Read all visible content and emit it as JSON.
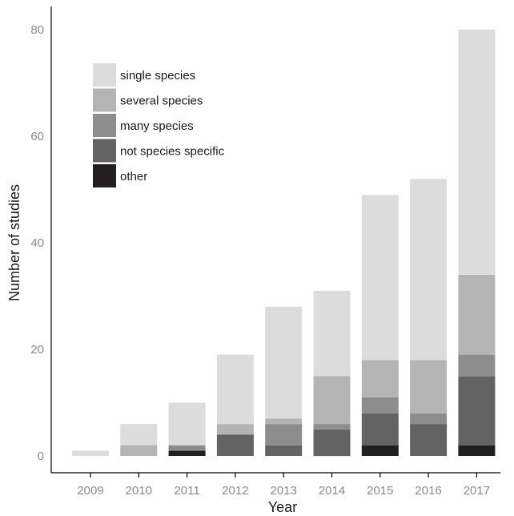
{
  "chart_data": {
    "type": "bar",
    "stacked": true,
    "title": "",
    "xlabel": "Year",
    "ylabel": "Number of studies",
    "categories": [
      "2009",
      "2010",
      "2011",
      "2012",
      "2013",
      "2014",
      "2015",
      "2016",
      "2017"
    ],
    "ylim": [
      0,
      80
    ],
    "yticks": [
      0,
      20,
      40,
      60,
      80
    ],
    "grid": false,
    "legend_position": "top-left",
    "series": [
      {
        "name": "other",
        "color": "#231f20",
        "values": [
          0,
          0,
          1,
          0,
          0,
          0,
          2,
          0,
          2
        ]
      },
      {
        "name": "not species specific",
        "color": "#636363",
        "values": [
          0,
          0,
          0,
          4,
          2,
          5,
          6,
          6,
          13
        ]
      },
      {
        "name": "many species",
        "color": "#8d8d8d",
        "values": [
          0,
          0,
          1,
          0,
          4,
          1,
          3,
          2,
          4
        ]
      },
      {
        "name": "several species",
        "color": "#b4b4b4",
        "values": [
          0,
          2,
          0,
          2,
          1,
          9,
          7,
          10,
          15
        ]
      },
      {
        "name": "single species",
        "color": "#dcdcdd",
        "values": [
          1,
          4,
          8,
          13,
          21,
          16,
          31,
          34,
          46
        ]
      }
    ],
    "legend_order": [
      "single species",
      "several species",
      "many species",
      "not species specific",
      "other"
    ]
  }
}
